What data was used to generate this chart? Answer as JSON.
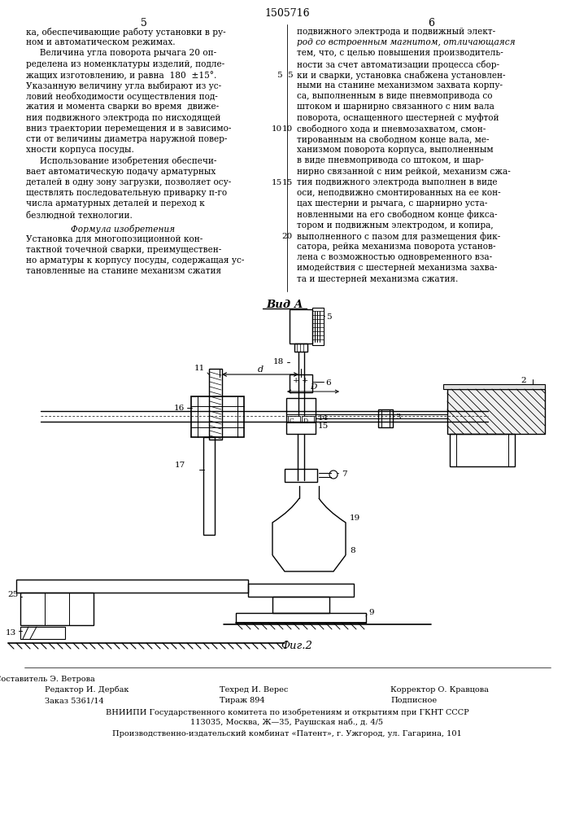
{
  "patent_number": "1505716",
  "col_left_number": "5",
  "col_right_number": "6",
  "left_column_text": [
    "ка, обеспечивающие работу установки в ру­",
    "ном и автоматическом режимах.",
    "     Величина угла поворота рычага 20 оп­",
    "ределена из номенклатуры изделий, подле­",
    "жащих изготовлению, и равна  180  ±15°.",
    "Указанную величину угла выбирают из ус­",
    "ловий необходимости осуществления под­",
    "жатия и момента сварки во время  движе­",
    "ния подвижного электрода по нисходящей",
    "вниз траектории перемещения и в зависимо­",
    "сти от величины диаметра наружной повер­",
    "хности корпуса посуды.",
    "     Использование изобретения обеспечи­",
    "вает автоматическую подачу арматурных",
    "деталей в одну зону загрузки, позволяет осу­",
    "ществлять последовательную приварку п-го",
    "числа арматурных деталей и переход к",
    "безлюдной технологии."
  ],
  "formula_title": "Формула изобретения",
  "formula_text": [
    "Установка для многопозиционной кон­",
    "тактной точечной сварки, преимуществен­",
    "но арматуры к корпусу посуды, содержащая ус­",
    "тановленные на станине механизм сжатия"
  ],
  "right_column_text": [
    "подвижного электрода и подвижный элект­",
    "род со встроенным магнитом, отличающаяся",
    "тем, что, с целью повышения производитель­",
    "ности за счет автоматизации процесса сбор­",
    "ки и сварки, установка снабжена установлен­",
    "ными на станине механизмом захвата корпу­",
    "са, выполненным в виде пневмопривода со",
    "штоком и шарнирно связанного с ним вала",
    "поворота, оснащенного шестерней с муфтой",
    "свободного хода и пневмозахватом, смон­",
    "тированным на свободном конце вала, ме­",
    "ханизмом поворота корпуса, выполненным",
    "в виде пневмопривода со штоком, и шар­",
    "нирно связанной с ним рейкой, механизм сжа­",
    "тия подвижного электрода выполнен в виде",
    "оси, неподвижно смонтированных на ее кон­",
    "цах шестерни и рычага, с шарнирно уста­",
    "новленными на его свободном конце фикса­",
    "тором и подвижным электродом, и копира,",
    "выполненного с пазом для размещения фик­",
    "сатора, рейка механизма поворота установ­",
    "лена с возможностью одновременного вза­",
    "имодействия с шестерней механизма захва­",
    "та и шестерней механизма сжатия."
  ],
  "view_label": "Вид А",
  "fig_label": "Фиг.2",
  "bg_color": "#ffffff",
  "editor_line": "Редактор И. Дербак",
  "order_line": "Заказ 5361/14",
  "compiler_label": "Составитель Э. Ветрова",
  "tech_line": "Техред И. Верес",
  "corrector_line": "Корректор О. Кравцова",
  "circulation_line": "Тираж 894",
  "subscription_line": "Подписное",
  "vniipи_line": "ВНИИПИ Государственного комитета по изобретениям и открытиям при ГКНТ СССР",
  "address_line": "113035, Москва, Ж—35, Раушская наб., д. 4/5",
  "production_line": "Производственно-издательский комбинат «Патент», г. Ужгород, ул. Гагарина, 101"
}
